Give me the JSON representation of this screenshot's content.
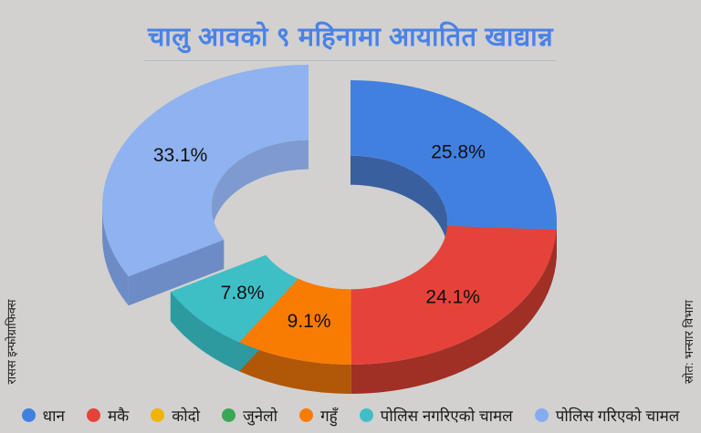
{
  "title": {
    "text": "चालु आवको ९ महिनामा आयातित खाद्यान्न"
  },
  "side_notes": {
    "left": "रासस इन्फोग्राफिक्स",
    "right": "स्रोत: भन्सार विभाग"
  },
  "colors": {
    "background": "#d2d1cf",
    "title": "#4a82e8",
    "percent_label": "#111111"
  },
  "chart_data": {
    "type": "pie",
    "style": "3d-donut",
    "title": "चालु आवको ९ महिनामा आयातित खाद्यान्न",
    "categories": [
      "धान",
      "मकै",
      "कोदो",
      "जुनेलो",
      "गहुँ",
      "पोलिस नगरिएको चामल",
      "पोलिस गरिएको चामल"
    ],
    "values": [
      25.8,
      24.1,
      0,
      0,
      9.1,
      7.8,
      33.1
    ],
    "labels": [
      "25.8%",
      "24.1%",
      "",
      "",
      "9.1%",
      "7.8%",
      "33.1%"
    ],
    "colors_top": [
      "#4280e0",
      "#e5433a",
      "#f5b800",
      "#3aa757",
      "#f97c02",
      "#3ebfc6",
      "#8fb2f0"
    ],
    "colors_side": [
      "#35599f",
      "#a02f26",
      "#c79510",
      "#2f8747",
      "#b05708",
      "#2d9aa0",
      "#6d8cc6"
    ],
    "colors_inner": [
      "#3a5f9f",
      "#a02f26",
      "#c79510",
      "#2f8747",
      "#b05708",
      "#2d9aa0",
      "#7e9ace"
    ],
    "donut_hole": 0.47,
    "start_angle": "12-oclock-clockwise",
    "exploded_index": 6,
    "legend_position": "bottom"
  },
  "legend": {
    "items": [
      {
        "label": "धान",
        "color": "#4280e0"
      },
      {
        "label": "मकै",
        "color": "#e5433a"
      },
      {
        "label": "कोदो",
        "color": "#f0b400"
      },
      {
        "label": "जुनेलो",
        "color": "#3aa757"
      },
      {
        "label": "गहुँ",
        "color": "#f97c02"
      },
      {
        "label": "पोलिस नगरिएको चामल",
        "color": "#41bdc6"
      },
      {
        "label": "पोलिस गरिएको चामल",
        "color": "#87abf0"
      }
    ]
  }
}
